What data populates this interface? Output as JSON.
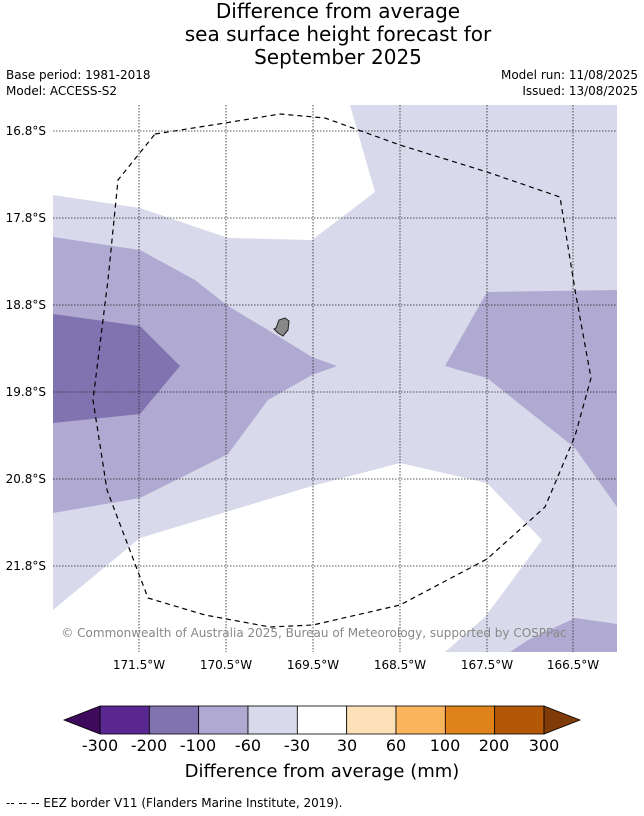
{
  "title": {
    "line1": "Difference from average",
    "line2": "sea surface height forecast for",
    "line3": "September 2025"
  },
  "meta": {
    "base_period": "Base period: 1981-2018",
    "model": "Model: ACCESS-S2",
    "model_run": "Model run: 11/08/2025",
    "issued": "Issued: 13/08/2025"
  },
  "map": {
    "latitude_labels": [
      "16.8°S",
      "17.8°S",
      "18.8°S",
      "19.8°S",
      "20.8°S",
      "21.8°S"
    ],
    "longitude_labels": [
      "171.5°W",
      "170.5°W",
      "169.5°W",
      "168.5°W",
      "167.5°W",
      "166.5°W"
    ],
    "copyright": "© Commonwealth of Australia 2025, Bureau of Meteorology, supported by COSPPac",
    "island_icon": "island-icon"
  },
  "legend": {
    "title": "Difference from average (mm)",
    "tick_labels": [
      "-300",
      "-200",
      "-100",
      "-60",
      "-30",
      "30",
      "60",
      "100",
      "200",
      "300"
    ],
    "colors": {
      "below_min": "#3f0a5c",
      "bins": [
        "#5b2891",
        "#8073b0",
        "#b0aad2",
        "#d8d9ea",
        "#ffffff",
        "#fde0b8",
        "#fbb65d",
        "#e0821a",
        "#b35806"
      ],
      "above_max": "#7f3b08"
    }
  },
  "footer": {
    "eez_note": "--  --  -- EEZ border V11 (Flanders Marine Institute, 2019)."
  }
}
